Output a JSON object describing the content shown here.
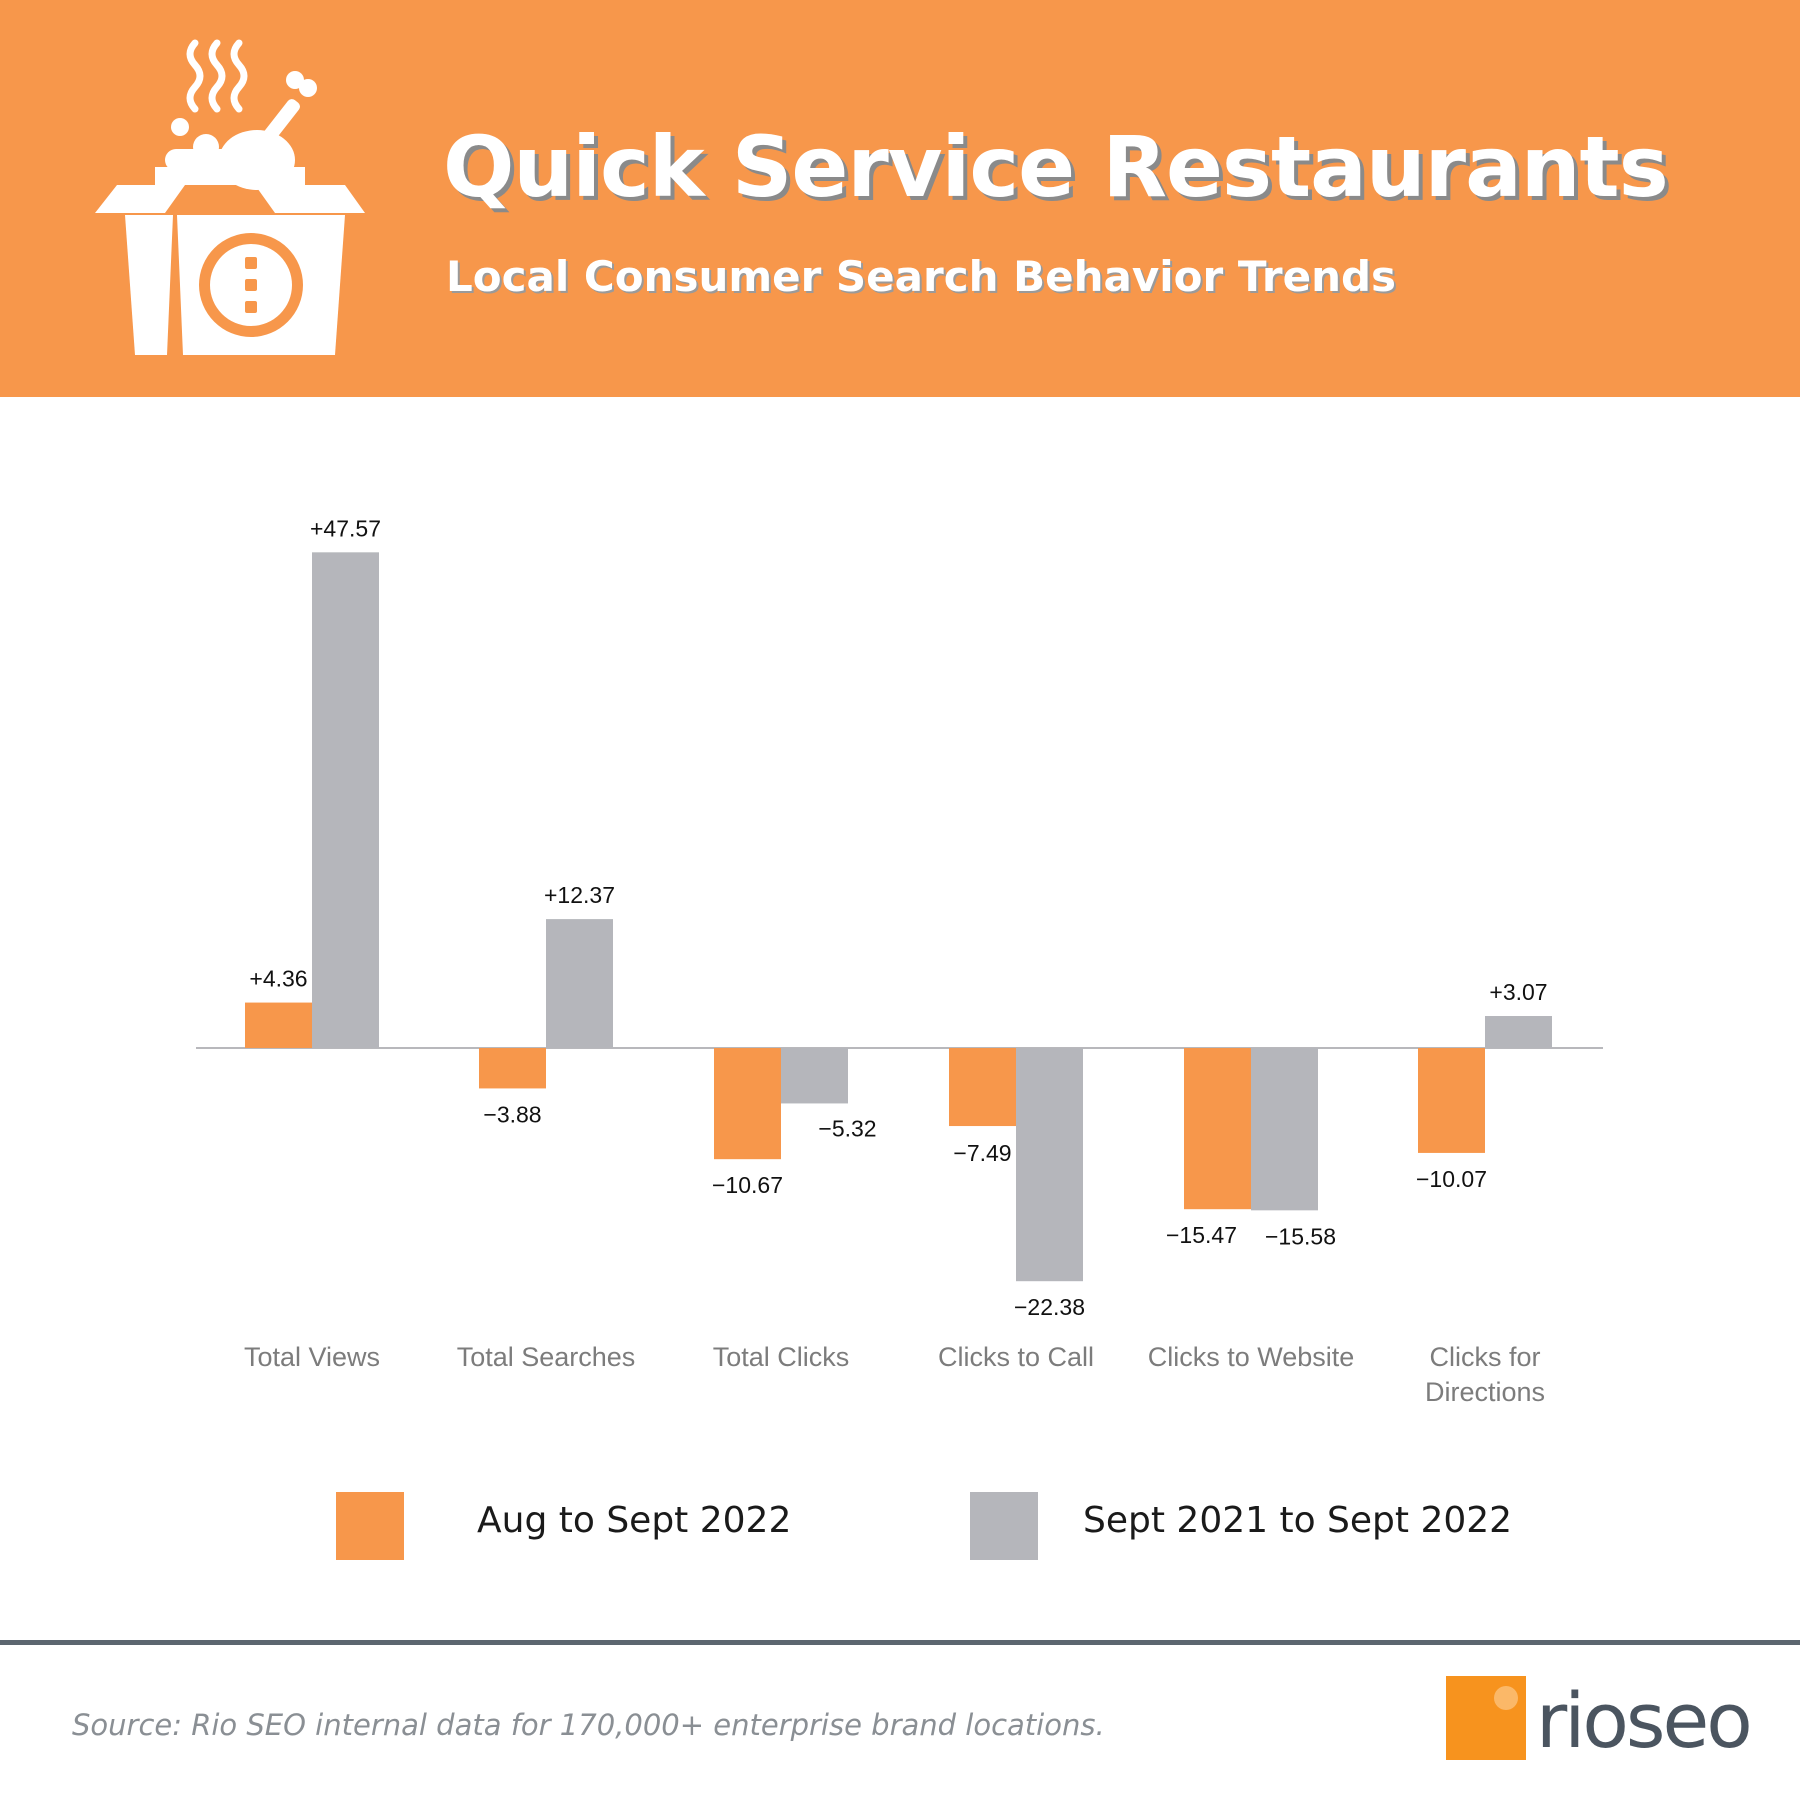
{
  "header": {
    "title": "Quick Service Restaurants",
    "subtitle": "Local Consumer Search Behavior Trends",
    "icon": "takeout-food-box-icon",
    "background_color": "#f7974b"
  },
  "chart_data": {
    "type": "bar",
    "title": "Quick Service Restaurants",
    "subtitle": "Local Consumer Search Behavior Trends",
    "xlabel": "",
    "ylabel": "",
    "grid": false,
    "legend_position": "bottom",
    "categories": [
      "Total Views",
      "Total Searches",
      "Total Clicks",
      "Clicks to Call",
      "Clicks to Website",
      "Clicks for Directions"
    ],
    "series": [
      {
        "name": "Aug to Sept 2022",
        "color": "#f7974b",
        "values": [
          4.36,
          -3.88,
          -10.67,
          -7.49,
          -15.47,
          -10.07
        ],
        "labels": [
          "+4.36",
          "−3.88",
          "−10.67",
          "−7.49",
          "−15.47",
          "−10.07"
        ]
      },
      {
        "name": "Sept 2021 to Sept 2022",
        "color": "#b5b6bb",
        "values": [
          47.57,
          12.37,
          -5.32,
          -22.38,
          -15.58,
          3.07
        ],
        "labels": [
          "+47.57",
          "+12.37",
          "−5.32",
          "−22.38",
          "−15.58",
          "+3.07"
        ]
      }
    ]
  },
  "legend": {
    "items": [
      {
        "label": "Aug to Sept 2022",
        "color": "#f7974b"
      },
      {
        "label": "Sept 2021 to Sept 2022",
        "color": "#b5b6bb"
      }
    ]
  },
  "footer": {
    "source": "Source: Rio SEO internal data for 170,000+ enterprise brand locations.",
    "logo_text": "rioseo",
    "logo_color": "#f7931e"
  }
}
